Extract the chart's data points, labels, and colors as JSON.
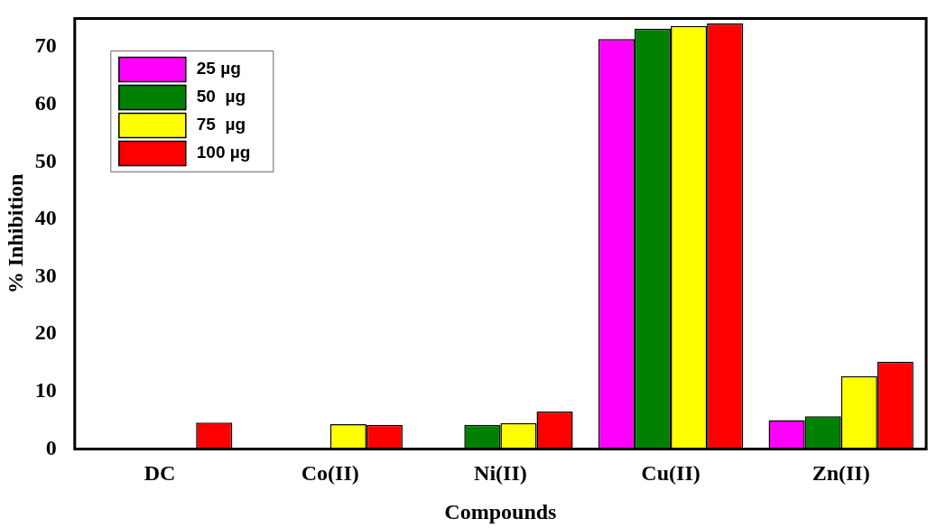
{
  "chart_data": {
    "type": "bar",
    "xlabel": "Compounds",
    "ylabel": "% Inhibition",
    "categories": [
      "DC",
      "Co(II)",
      "Ni(II)",
      "Cu(II)",
      "Zn(II)"
    ],
    "series": [
      {
        "name": "25 µg",
        "color": "#ff00ff",
        "values": [
          null,
          null,
          null,
          71.4,
          5.0
        ]
      },
      {
        "name": "50  µg",
        "color": "#008000",
        "values": [
          null,
          null,
          4.2,
          73.2,
          5.7
        ]
      },
      {
        "name": "75  µg",
        "color": "#ffff00",
        "values": [
          null,
          4.3,
          4.5,
          73.7,
          12.7
        ]
      },
      {
        "name": "100 µg",
        "color": "#ff0000",
        "values": [
          4.6,
          4.2,
          6.5,
          74.1,
          15.2
        ]
      }
    ],
    "ylim": [
      0,
      75
    ],
    "yticks": [
      0,
      10,
      20,
      30,
      40,
      50,
      60,
      70
    ],
    "grid": false,
    "legend": "top left"
  }
}
